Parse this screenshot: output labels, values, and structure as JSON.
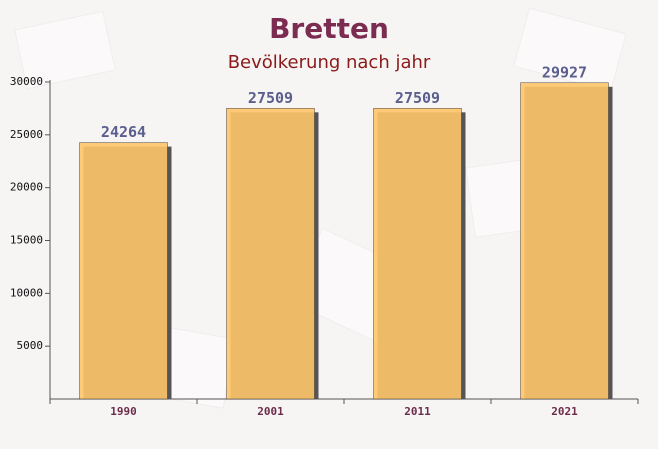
{
  "chart_data": {
    "type": "bar",
    "title": "Bretten",
    "subtitle": "Bevölkerung nach jahr",
    "categories": [
      "1990",
      "2001",
      "2011",
      "2021"
    ],
    "values": [
      24264,
      27509,
      27509,
      29927
    ],
    "color": "#fec66a",
    "ylim": [
      0,
      30000
    ],
    "yticks": [
      5000,
      10000,
      15000,
      20000,
      25000,
      30000
    ]
  }
}
